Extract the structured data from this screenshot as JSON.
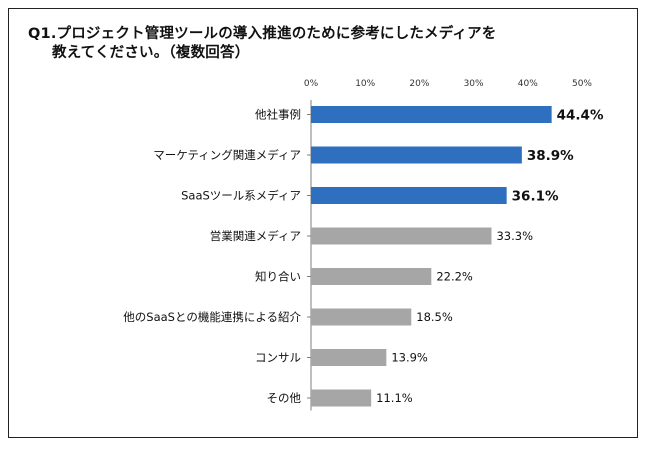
{
  "title_line1": "Q1.プロジェクト管理ツールの導入推進のために参考にしたメディアを",
  "title_line2": "教えてください。（複数回答）",
  "colors": {
    "highlight": "#2f6fbf",
    "normal": "#a6a6a6",
    "axis": "#7f7f7f"
  },
  "chart_data": {
    "type": "bar",
    "orientation": "horizontal",
    "xlim": [
      0,
      50
    ],
    "ticks": [
      "0%",
      "10%",
      "20%",
      "30%",
      "40%",
      "50%"
    ],
    "tick_values": [
      0,
      10,
      20,
      30,
      40,
      50
    ],
    "categories": [
      "他社事例",
      "マーケティング関連メディア",
      "SaaSツール系メディア",
      "営業関連メディア",
      "知り合い",
      "他のSaaSとの機能連携による紹介",
      "コンサル",
      "その他"
    ],
    "values": [
      44.4,
      38.9,
      36.1,
      33.3,
      22.2,
      18.5,
      13.9,
      11.1
    ],
    "labels": [
      "44.4%",
      "38.9%",
      "36.1%",
      "33.3%",
      "22.2%",
      "18.5%",
      "13.9%",
      "11.1%"
    ],
    "highlighted": [
      true,
      true,
      true,
      false,
      false,
      false,
      false,
      false
    ],
    "grid": false,
    "legend": "none"
  }
}
